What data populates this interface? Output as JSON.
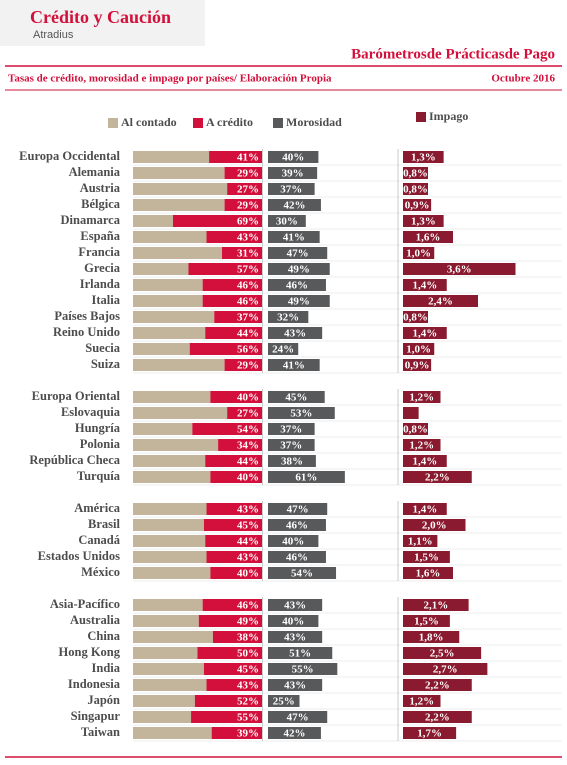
{
  "header": {
    "brand": "Crédito y Caución",
    "brand_sub": "Atradius"
  },
  "chart_data": {
    "type": "bar",
    "title": "Barómetrosde Prácticasde Pago",
    "subtitle": "Tasas de crédito, morosidad e impago por países/ Elaboración Propia",
    "date": "Octubre 2016",
    "categories": [
      "Europa Occidental",
      "Alemania",
      "Austria",
      "Bélgica",
      "Dinamarca",
      "España",
      "Francia",
      "Grecia",
      "Irlanda",
      "Italia",
      "Países Bajos",
      "Reino Unido",
      "Suecia",
      "Suiza",
      null,
      "Europa Oriental",
      "Eslovaquia",
      "Hungría",
      "Polonia",
      "República Checa",
      "Turquía",
      null,
      "América",
      "Brasil",
      "Canadá",
      "Estados Unidos",
      "México",
      null,
      "Asia-Pacífico",
      "Australia",
      "China",
      "Hong Kong",
      "India",
      "Indonesia",
      "Japón",
      "Singapur",
      "Taiwan"
    ],
    "series": [
      {
        "name": "Al contado",
        "color": "#c3b59b",
        "xlim": [
          0,
          100
        ],
        "values": [
          59,
          71,
          73,
          71,
          31,
          57,
          69,
          43,
          54,
          54,
          63,
          56,
          44,
          71,
          null,
          60,
          73,
          46,
          66,
          56,
          60,
          null,
          57,
          55,
          56,
          57,
          60,
          null,
          54,
          51,
          62,
          50,
          55,
          57,
          48,
          45,
          61
        ]
      },
      {
        "name": "A crédito",
        "color": "#d2103b",
        "xlim": [
          0,
          100
        ],
        "values": [
          41,
          29,
          27,
          29,
          69,
          43,
          31,
          57,
          46,
          46,
          37,
          44,
          56,
          29,
          null,
          40,
          27,
          54,
          34,
          44,
          40,
          null,
          43,
          45,
          44,
          43,
          40,
          null,
          46,
          49,
          38,
          50,
          45,
          43,
          52,
          55,
          39
        ],
        "value_labels": [
          "41%",
          "29%",
          "27%",
          "29%",
          "69%",
          "43%",
          "31%",
          "57%",
          "46%",
          "46%",
          "37%",
          "44%",
          "56%",
          "29%",
          null,
          "40%",
          "27%",
          "54%",
          "34%",
          "44%",
          "40%",
          null,
          "43%",
          "45%",
          "44%",
          "43%",
          "40%",
          null,
          "46%",
          "49%",
          "38%",
          "50%",
          "45%",
          "43%",
          "52%",
          "55%",
          "39%"
        ]
      },
      {
        "name": "Morosidad",
        "color": "#58595b",
        "xlim": [
          0,
          100
        ],
        "values": [
          40,
          39,
          37,
          42,
          30,
          41,
          47,
          49,
          46,
          49,
          32,
          43,
          24,
          41,
          null,
          45,
          53,
          37,
          37,
          38,
          61,
          null,
          47,
          46,
          40,
          46,
          54,
          null,
          43,
          40,
          43,
          51,
          55,
          43,
          25,
          47,
          42
        ],
        "value_labels": [
          "40%",
          "39%",
          "37%",
          "42%",
          "30%",
          "41%",
          "47%",
          "49%",
          "46%",
          "49%",
          "32%",
          "43%",
          "24%",
          "41%",
          null,
          "45%",
          "53%",
          "37%",
          "37%",
          "38%",
          "61%",
          null,
          "47%",
          "46%",
          "40%",
          "46%",
          "54%",
          null,
          "43%",
          "40%",
          "43%",
          "51%",
          "55%",
          "43%",
          "25%",
          "47%",
          "42%"
        ]
      },
      {
        "name": "Impago",
        "color": "#8a1a2f",
        "xlim": [
          0,
          4
        ],
        "values": [
          1.3,
          0.8,
          0.8,
          0.9,
          1.3,
          1.6,
          1.0,
          3.6,
          1.4,
          2.4,
          0.8,
          1.4,
          1.0,
          0.9,
          null,
          1.2,
          0.5,
          0.8,
          1.2,
          1.4,
          2.2,
          null,
          1.4,
          2.0,
          1.1,
          1.5,
          1.6,
          null,
          2.1,
          1.5,
          1.8,
          2.5,
          2.7,
          2.2,
          1.2,
          2.2,
          1.7
        ],
        "value_labels": [
          "1,3%",
          "0,8%",
          "0,8%",
          "0,9%",
          "1,3%",
          "1,6%",
          "1,0%",
          "3,6%",
          "1,4%",
          "2,4%",
          "0,8%",
          "1,4%",
          "1,0%",
          "0,9%",
          null,
          "1,2%",
          null,
          "0,8%",
          "1,2%",
          "1,4%",
          "2,2%",
          null,
          "1,4%",
          "2,0%",
          "1,1%",
          "1,5%",
          "1,6%",
          null,
          "2,1%",
          "1,5%",
          "1,8%",
          "2,5%",
          "2,7%",
          "2,2%",
          "1,2%",
          "2,2%",
          "1,7%"
        ]
      }
    ]
  }
}
